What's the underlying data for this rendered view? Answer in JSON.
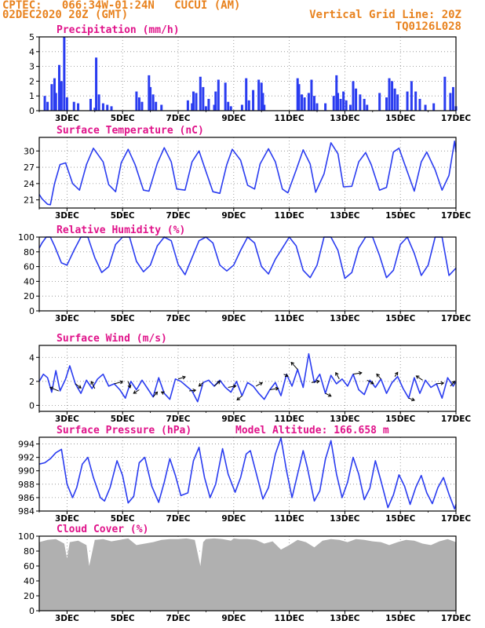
{
  "header": {
    "line1_left": "CPTEC:   066:34W-01:24N   CUCUI (AM)",
    "line2_left": "02DEC2020 20Z (GMT)",
    "line1_right": "Vertical Grid Line: 20Z",
    "line2_right": "TQ0126L028"
  },
  "colors": {
    "header": "#e8821e",
    "title": "#e0138a",
    "series": "#2a3cf0",
    "cloud": "#b0b0b0",
    "axis": "#000000",
    "grid": "#888888"
  },
  "x_axis": {
    "min": 0,
    "max": 15,
    "units": "days from 02DEC2020 20Z",
    "tick_labels": [
      "3DEC",
      "5DEC",
      "7DEC",
      "9DEC",
      "11DEC",
      "13DEC",
      "15DEC",
      "17DEC"
    ]
  },
  "chart_data": [
    {
      "id": "precip",
      "type": "bar",
      "title": "Precipitation (mm/h)",
      "ylim": [
        0,
        5
      ],
      "yticks": [
        0,
        1,
        2,
        3,
        4,
        5
      ],
      "x": [
        0.2,
        0.3,
        0.45,
        0.55,
        0.6,
        0.72,
        0.8,
        0.9,
        1.0,
        1.25,
        1.4,
        1.85,
        2.0,
        2.05,
        2.15,
        2.3,
        2.45,
        2.6,
        3.5,
        3.6,
        3.7,
        3.95,
        4.0,
        4.1,
        4.2,
        4.4,
        5.35,
        5.5,
        5.55,
        5.65,
        5.8,
        5.9,
        6.0,
        6.1,
        6.3,
        6.35,
        6.45,
        6.7,
        6.8,
        6.9,
        7.3,
        7.45,
        7.55,
        7.7,
        7.9,
        8.0,
        8.05,
        8.1,
        9.3,
        9.35,
        9.45,
        9.55,
        9.7,
        9.8,
        9.9,
        10.0,
        10.3,
        10.6,
        10.7,
        10.75,
        10.85,
        10.95,
        11.05,
        11.2,
        11.3,
        11.4,
        11.55,
        11.7,
        11.8,
        12.25,
        12.5,
        12.6,
        12.7,
        12.8,
        12.9,
        13.25,
        13.4,
        13.55,
        13.7,
        13.9,
        14.2,
        14.6,
        14.8,
        14.9,
        15.0
      ],
      "values": [
        1.0,
        0.6,
        1.8,
        2.2,
        1.2,
        3.1,
        2.0,
        5.0,
        0.9,
        0.6,
        0.5,
        0.8,
        0.2,
        3.6,
        1.1,
        0.5,
        0.4,
        0.3,
        1.3,
        0.9,
        0.6,
        2.4,
        1.6,
        1.1,
        0.6,
        0.4,
        0.7,
        0.5,
        1.3,
        1.2,
        2.3,
        1.6,
        0.3,
        0.8,
        0.4,
        1.3,
        2.1,
        1.9,
        0.6,
        0.3,
        0.4,
        2.2,
        0.7,
        1.4,
        2.1,
        1.9,
        1.2,
        0.4,
        2.2,
        1.8,
        1.1,
        0.9,
        1.2,
        2.1,
        1.0,
        0.5,
        0.5,
        1.0,
        2.4,
        1.2,
        0.8,
        1.3,
        0.7,
        0.4,
        2.0,
        1.5,
        1.1,
        0.8,
        0.4,
        1.2,
        0.9,
        2.2,
        2.0,
        1.5,
        1.1,
        1.3,
        2.0,
        1.3,
        0.8,
        0.4,
        0.5,
        2.3,
        1.2,
        1.6,
        0.3
      ]
    },
    {
      "id": "temp",
      "type": "line",
      "title": "Surface Temperature (nC)",
      "ylim": [
        19.5,
        32.5
      ],
      "yticks": [
        21,
        24,
        27,
        30
      ],
      "x": [
        0,
        0.1,
        0.3,
        0.4,
        0.55,
        0.75,
        0.95,
        1.2,
        1.45,
        1.7,
        1.95,
        2.3,
        2.5,
        2.75,
        2.95,
        3.2,
        3.45,
        3.75,
        3.95,
        4.25,
        4.5,
        4.75,
        4.95,
        5.25,
        5.5,
        5.75,
        5.95,
        6.25,
        6.5,
        6.75,
        6.95,
        7.25,
        7.5,
        7.75,
        7.95,
        8.25,
        8.5,
        8.75,
        8.95,
        9.25,
        9.5,
        9.75,
        9.95,
        10.25,
        10.5,
        10.75,
        10.95,
        11.25,
        11.5,
        11.75,
        11.95,
        12.25,
        12.5,
        12.75,
        12.95,
        13.25,
        13.5,
        13.75,
        13.95,
        14.25,
        14.5,
        14.75,
        14.95,
        15.0
      ],
      "values": [
        22,
        21.2,
        20.2,
        20.1,
        24,
        27.5,
        27.8,
        24,
        22.8,
        27.5,
        30.5,
        28,
        23.8,
        22.5,
        27.8,
        30.3,
        27.5,
        22.8,
        22.6,
        27.7,
        30.6,
        28,
        23,
        22.8,
        28,
        30,
        27,
        22.5,
        22.2,
        27.5,
        30.3,
        28.3,
        23.7,
        23,
        27.6,
        30.4,
        28,
        23,
        22.3,
        26.5,
        30.2,
        27.6,
        22.4,
        25.8,
        31.5,
        29.5,
        23.4,
        23.5,
        28,
        29.7,
        27.5,
        22.8,
        23.3,
        29.8,
        30.5,
        26.2,
        22.6,
        28,
        29.8,
        26.5,
        22.8,
        25.5,
        31.8,
        29.8
      ]
    },
    {
      "id": "rh",
      "type": "line",
      "title": "Relative Humidity (%)",
      "ylim": [
        0,
        100
      ],
      "yticks": [
        0,
        20,
        40,
        60,
        80,
        100
      ],
      "x": [
        0,
        0.1,
        0.25,
        0.4,
        0.55,
        0.8,
        1.0,
        1.25,
        1.5,
        1.75,
        2.0,
        2.25,
        2.5,
        2.75,
        3.0,
        3.25,
        3.5,
        3.75,
        4.0,
        4.25,
        4.5,
        4.75,
        5.0,
        5.25,
        5.5,
        5.75,
        6.0,
        6.25,
        6.5,
        6.75,
        7.0,
        7.25,
        7.5,
        7.75,
        8.0,
        8.25,
        8.5,
        8.75,
        9.0,
        9.25,
        9.5,
        9.75,
        10.0,
        10.25,
        10.5,
        10.75,
        11.0,
        11.25,
        11.5,
        11.75,
        12.0,
        12.25,
        12.5,
        12.75,
        13.0,
        13.25,
        13.5,
        13.75,
        14.0,
        14.25,
        14.5,
        14.75,
        15.0
      ],
      "values": [
        85,
        92,
        100,
        100,
        88,
        65,
        62,
        82,
        100,
        100,
        72,
        52,
        60,
        90,
        100,
        100,
        67,
        53,
        62,
        88,
        100,
        95,
        63,
        49,
        72,
        95,
        100,
        92,
        62,
        54,
        62,
        82,
        100,
        92,
        60,
        50,
        70,
        85,
        100,
        88,
        55,
        45,
        62,
        100,
        100,
        82,
        44,
        52,
        85,
        100,
        100,
        75,
        45,
        55,
        90,
        100,
        78,
        48,
        62,
        100,
        100,
        48,
        58
      ]
    },
    {
      "id": "wind",
      "type": "line",
      "title": "Surface Wind (m/s)",
      "ylim": [
        -0.5,
        5
      ],
      "yticks": [
        0,
        2,
        4
      ],
      "x": [
        0,
        0.15,
        0.3,
        0.45,
        0.6,
        0.75,
        0.95,
        1.1,
        1.3,
        1.5,
        1.7,
        1.9,
        2.1,
        2.3,
        2.5,
        2.7,
        2.9,
        3.1,
        3.3,
        3.5,
        3.7,
        3.9,
        4.1,
        4.3,
        4.5,
        4.7,
        4.9,
        5.1,
        5.3,
        5.5,
        5.7,
        5.9,
        6.1,
        6.3,
        6.5,
        6.7,
        6.9,
        7.1,
        7.3,
        7.5,
        7.7,
        7.9,
        8.1,
        8.3,
        8.5,
        8.7,
        8.9,
        9.1,
        9.3,
        9.5,
        9.7,
        9.9,
        10.1,
        10.3,
        10.5,
        10.7,
        10.9,
        11.1,
        11.3,
        11.5,
        11.7,
        11.9,
        12.1,
        12.3,
        12.5,
        12.7,
        12.9,
        13.1,
        13.3,
        13.5,
        13.7,
        13.9,
        14.1,
        14.3,
        14.5,
        14.7,
        14.9,
        15.0
      ],
      "values": [
        2.0,
        2.6,
        2.3,
        1.1,
        2.9,
        1.2,
        2.2,
        3.3,
        1.8,
        1.0,
        2.1,
        1.4,
        2.2,
        2.6,
        1.6,
        1.8,
        1.3,
        0.6,
        2.0,
        1.3,
        2.1,
        1.4,
        0.7,
        2.3,
        1.0,
        0.5,
        2.2,
        2.0,
        1.6,
        1.2,
        0.3,
        1.9,
        2.1,
        1.6,
        2.1,
        1.5,
        1.1,
        2.0,
        0.8,
        1.9,
        1.6,
        1.0,
        0.5,
        1.3,
        1.9,
        0.8,
        2.6,
        1.6,
        3.0,
        1.5,
        4.3,
        1.9,
        2.6,
        1.0,
        2.5,
        1.8,
        2.2,
        1.6,
        2.6,
        1.3,
        0.9,
        2.1,
        1.5,
        2.2,
        1.0,
        1.9,
        2.4,
        1.4,
        0.6,
        2.3,
        1.0,
        2.1,
        1.5,
        1.8,
        0.6,
        2.3,
        1.6,
        2.0
      ],
      "vectors": {
        "x": [
          0.7,
          1.3,
          2.0,
          2.7,
          3.2,
          3.6,
          4.1,
          4.5,
          5.0,
          5.4,
          5.9,
          6.3,
          6.8,
          7.3,
          7.8,
          8.3,
          8.8,
          9.3,
          9.8,
          10.3,
          10.8,
          11.3,
          11.8,
          12.3,
          12.8,
          13.3,
          13.8,
          14.3,
          14.8
        ],
        "u": [
          -1.2,
          0.8,
          -0.5,
          1.2,
          0.3,
          -0.8,
          0.6,
          -0.4,
          1.0,
          0.9,
          -0.6,
          0.8,
          1.1,
          -0.7,
          0.9,
          1.2,
          0.6,
          -0.9,
          1.1,
          0.8,
          -0.5,
          1.2,
          0.9,
          -0.6,
          0.4,
          0.8,
          -0.9,
          1.0,
          0.6
        ],
        "v": [
          0.5,
          -0.6,
          1.0,
          0.3,
          -0.9,
          -0.5,
          0.7,
          0.2,
          0.3,
          0.1,
          -0.5,
          0.7,
          0.2,
          -0.6,
          0.5,
          0.2,
          -0.3,
          1.0,
          0.2,
          -0.4,
          0.9,
          0.2,
          -0.5,
          0.7,
          0.6,
          -0.3,
          0.6,
          0.1,
          0.7
        ]
      }
    },
    {
      "id": "pressure",
      "type": "line",
      "title": "Surface Pressure (hPa)",
      "annotation": "Model Altitude: 166.658 m",
      "ylim": [
        984,
        995
      ],
      "yticks": [
        984,
        986,
        988,
        990,
        992,
        994
      ],
      "x": [
        0,
        0.2,
        0.4,
        0.6,
        0.8,
        1.0,
        1.2,
        1.35,
        1.55,
        1.75,
        1.95,
        2.2,
        2.35,
        2.55,
        2.8,
        3.0,
        3.2,
        3.4,
        3.6,
        3.8,
        4.05,
        4.3,
        4.5,
        4.7,
        4.9,
        5.1,
        5.35,
        5.55,
        5.75,
        5.95,
        6.15,
        6.35,
        6.6,
        6.8,
        7.05,
        7.25,
        7.45,
        7.6,
        7.85,
        8.05,
        8.25,
        8.5,
        8.7,
        8.9,
        9.1,
        9.3,
        9.5,
        9.65,
        9.9,
        10.1,
        10.3,
        10.5,
        10.7,
        10.9,
        11.1,
        11.3,
        11.5,
        11.7,
        11.9,
        12.1,
        12.3,
        12.55,
        12.75,
        12.95,
        13.15,
        13.35,
        13.55,
        13.75,
        13.95,
        14.15,
        14.35,
        14.55,
        14.75,
        14.95,
        15.0
      ],
      "values": [
        991,
        991.2,
        991.8,
        992.7,
        993.2,
        988,
        986,
        987.5,
        991,
        992,
        989,
        986,
        985.5,
        987.5,
        991.5,
        989.3,
        985.2,
        986.2,
        991.2,
        992,
        987.7,
        985.3,
        988.3,
        991.8,
        989.3,
        986.3,
        986.7,
        991.5,
        993.5,
        989,
        986,
        988,
        993.3,
        989.5,
        986.8,
        989,
        992.5,
        993,
        989,
        985.8,
        987.5,
        992.5,
        994.9,
        990,
        986,
        989.5,
        993,
        990.5,
        985.5,
        987,
        991.7,
        994.5,
        989.5,
        986,
        988.3,
        992,
        989.5,
        985.7,
        987.4,
        991.5,
        988.5,
        984.5,
        986.4,
        989.4,
        987.7,
        985,
        987.5,
        989.3,
        986.7,
        985.1,
        987.5,
        989,
        986.5,
        984.3,
        985
      ]
    },
    {
      "id": "cloud",
      "type": "area",
      "title": "Cloud Cover (%)",
      "ylim": [
        0,
        100
      ],
      "yticks": [
        0,
        20,
        40,
        60,
        80,
        100
      ],
      "x": [
        0,
        0.3,
        0.6,
        0.9,
        1.0,
        1.1,
        1.4,
        1.7,
        1.8,
        2.0,
        2.3,
        2.6,
        2.9,
        3.2,
        3.5,
        3.8,
        4.1,
        4.4,
        4.7,
        5.0,
        5.3,
        5.6,
        5.8,
        5.9,
        6.0,
        6.3,
        6.6,
        6.9,
        7.0,
        7.2,
        7.5,
        7.8,
        8.1,
        8.4,
        8.7,
        9.0,
        9.3,
        9.6,
        9.9,
        10.2,
        10.5,
        10.8,
        11.1,
        11.4,
        11.7,
        12.0,
        12.3,
        12.6,
        12.9,
        13.2,
        13.5,
        13.8,
        14.1,
        14.4,
        14.7,
        15.0
      ],
      "values": [
        92,
        95,
        96,
        90,
        70,
        92,
        94,
        88,
        60,
        95,
        96,
        93,
        95,
        97,
        88,
        90,
        92,
        95,
        96,
        96,
        97,
        95,
        60,
        92,
        96,
        97,
        96,
        94,
        97,
        96,
        96,
        95,
        90,
        93,
        82,
        88,
        95,
        92,
        85,
        94,
        96,
        95,
        92,
        96,
        95,
        93,
        92,
        88,
        92,
        95,
        94,
        90,
        88,
        93,
        96,
        92
      ]
    }
  ]
}
